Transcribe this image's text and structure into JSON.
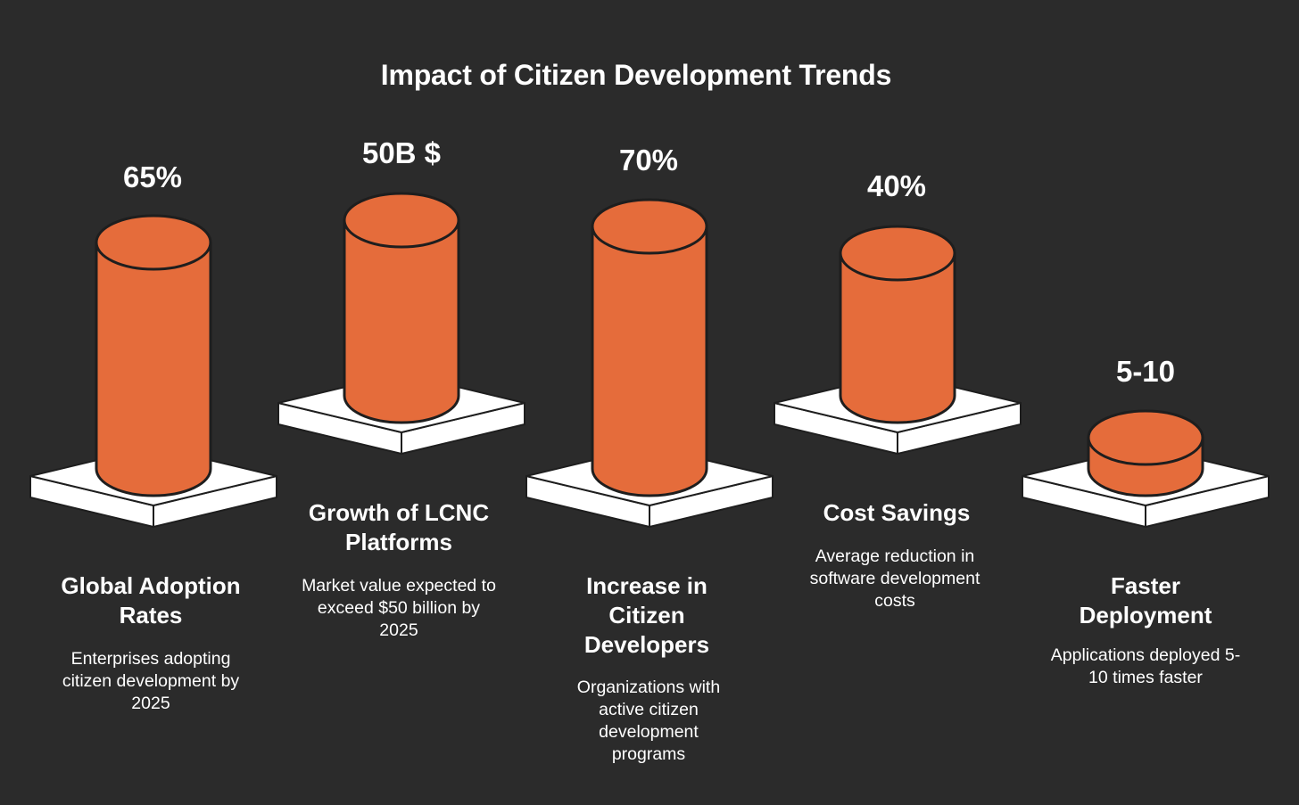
{
  "title": "Impact of Citizen Development Trends",
  "colors": {
    "background": "#2b2b2b",
    "cylinder": "#e56c3b",
    "outline": "#1e1e1e",
    "platform": "#ffffff",
    "text": "#ffffff"
  },
  "items": [
    {
      "value": "65%",
      "label": "Global Adoption Rates",
      "description": "Enterprises adopting citizen development by 2025"
    },
    {
      "value": "50B $",
      "label": "Growth of LCNC Platforms",
      "description": "Market value expected to exceed $50 billion by 2025"
    },
    {
      "value": "70%",
      "label": "Increase in Citizen Developers",
      "description": "Organizations with active citizen development programs"
    },
    {
      "value": "40%",
      "label": "Cost Savings",
      "description": "Average reduction in software development costs"
    },
    {
      "value": "5-10",
      "label": "Faster Deployment",
      "description": "Applications deployed 5-10 times faster"
    }
  ]
}
